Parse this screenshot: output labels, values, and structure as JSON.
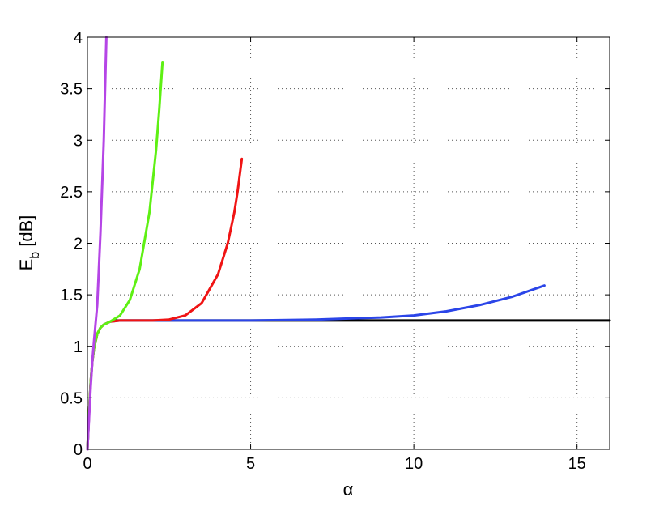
{
  "chart_data": {
    "type": "line",
    "xlabel": "α",
    "ylabel": "E",
    "ylabel_sub": "b",
    "ylabel_unit": " [dB]",
    "xlim": [
      0,
      16
    ],
    "ylim": [
      0,
      4
    ],
    "xticks": [
      0,
      5,
      10,
      15
    ],
    "xtick_labels": [
      "0",
      "5",
      "10",
      "15"
    ],
    "yticks": [
      0,
      0.5,
      1,
      1.5,
      2,
      2.5,
      3,
      3.5,
      4
    ],
    "ytick_labels": [
      "0",
      "0.5",
      "1",
      "1.5",
      "2",
      "2.5",
      "3",
      "3.5",
      "4"
    ],
    "grid": true,
    "legend": "none",
    "series": [
      {
        "color": "#b545e6",
        "points": [
          [
            0,
            0
          ],
          [
            0.05,
            0.3
          ],
          [
            0.1,
            0.6
          ],
          [
            0.15,
            0.85
          ],
          [
            0.2,
            1.05
          ],
          [
            0.3,
            1.4
          ],
          [
            0.4,
            2.1
          ],
          [
            0.5,
            3.0
          ],
          [
            0.58,
            4.0
          ]
        ]
      },
      {
        "color": "#5ef013",
        "points": [
          [
            0,
            0
          ],
          [
            0.05,
            0.35
          ],
          [
            0.1,
            0.65
          ],
          [
            0.15,
            0.85
          ],
          [
            0.2,
            0.98
          ],
          [
            0.3,
            1.12
          ],
          [
            0.4,
            1.18
          ],
          [
            0.5,
            1.21
          ],
          [
            0.7,
            1.24
          ],
          [
            1.0,
            1.3
          ],
          [
            1.3,
            1.45
          ],
          [
            1.6,
            1.75
          ],
          [
            1.9,
            2.3
          ],
          [
            2.1,
            2.9
          ],
          [
            2.2,
            3.3
          ],
          [
            2.3,
            3.76
          ]
        ]
      },
      {
        "color": "#f01414",
        "points": [
          [
            0,
            0
          ],
          [
            0.05,
            0.35
          ],
          [
            0.1,
            0.65
          ],
          [
            0.15,
            0.85
          ],
          [
            0.2,
            0.98
          ],
          [
            0.3,
            1.12
          ],
          [
            0.4,
            1.18
          ],
          [
            0.5,
            1.21
          ],
          [
            0.7,
            1.24
          ],
          [
            1.0,
            1.25
          ],
          [
            2.0,
            1.25
          ],
          [
            2.5,
            1.26
          ],
          [
            3.0,
            1.3
          ],
          [
            3.5,
            1.42
          ],
          [
            4.0,
            1.7
          ],
          [
            4.3,
            2.0
          ],
          [
            4.5,
            2.3
          ],
          [
            4.6,
            2.5
          ],
          [
            4.73,
            2.82
          ]
        ]
      },
      {
        "color": "#2b45e8",
        "points": [
          [
            0,
            0
          ],
          [
            0.05,
            0.35
          ],
          [
            0.1,
            0.65
          ],
          [
            0.15,
            0.85
          ],
          [
            0.2,
            0.98
          ],
          [
            0.3,
            1.12
          ],
          [
            0.4,
            1.18
          ],
          [
            0.5,
            1.21
          ],
          [
            0.7,
            1.24
          ],
          [
            1.0,
            1.25
          ],
          [
            5.0,
            1.25
          ],
          [
            7.0,
            1.26
          ],
          [
            8.0,
            1.27
          ],
          [
            9.0,
            1.28
          ],
          [
            10.0,
            1.3
          ],
          [
            11.0,
            1.34
          ],
          [
            12.0,
            1.4
          ],
          [
            13.0,
            1.48
          ],
          [
            14.0,
            1.59
          ]
        ]
      },
      {
        "color": "#000000",
        "points": [
          [
            0.8,
            1.25
          ],
          [
            16,
            1.25
          ]
        ]
      }
    ]
  }
}
